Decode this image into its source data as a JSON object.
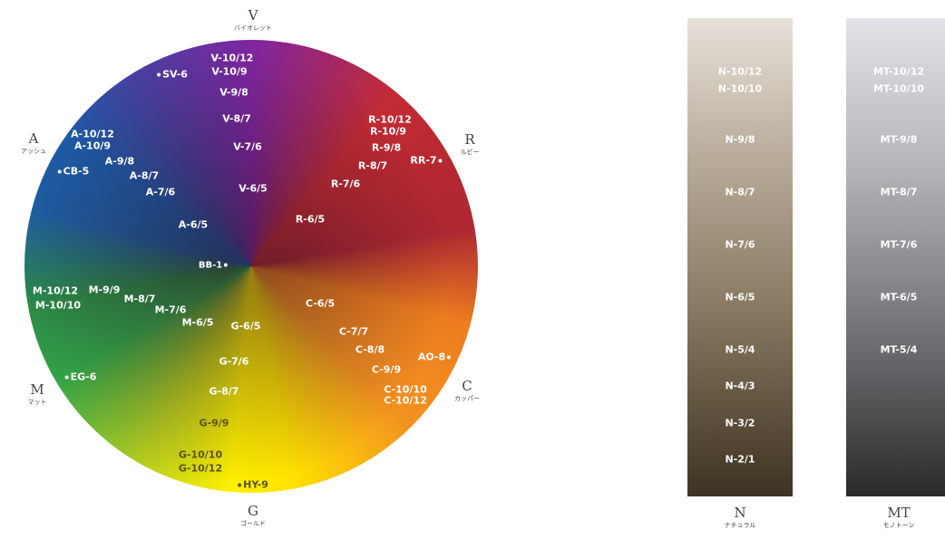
{
  "wheel": {
    "axes": {
      "v": {
        "letter": "V",
        "name": "バイオレット"
      },
      "r": {
        "letter": "R",
        "name": "ルビー"
      },
      "c": {
        "letter": "C",
        "name": "カッパー"
      },
      "g": {
        "letter": "G",
        "name": "ゴールド"
      },
      "m": {
        "letter": "M",
        "name": "マット"
      },
      "a": {
        "letter": "A",
        "name": "アッシュ"
      }
    },
    "labels": {
      "v_10_12": "V-10/12",
      "v_10_9": "V-10/9",
      "v_9_8": "V-9/8",
      "v_8_7": "V-8/7",
      "v_7_6": "V-7/6",
      "v_6_5": "V-6/5",
      "sv_6": "SV-6",
      "r_10_12": "R-10/12",
      "r_10_9": "R-10/9",
      "r_9_8": "R-9/8",
      "r_8_7": "R-8/7",
      "r_7_6": "R-7/6",
      "r_6_5": "R-6/5",
      "rr_7": "RR-7",
      "a_10_12": "A-10/12",
      "a_10_9": "A-10/9",
      "a_9_8": "A-9/8",
      "a_8_7": "A-8/7",
      "a_7_6": "A-7/6",
      "a_6_5": "A-6/5",
      "cb_5": "CB-5",
      "bb_1": "BB-1",
      "m_10_12": "M-10/12",
      "m_10_10": "M-10/10",
      "m_9_9": "M-9/9",
      "m_8_7": "M-8/7",
      "m_7_6": "M-7/6",
      "m_6_5": "M-6/5",
      "eg_6": "EG-6",
      "c_6_5": "C-6/5",
      "c_7_7": "C-7/7",
      "c_8_8": "C-8/8",
      "c_9_9": "C-9/9",
      "c_10_10": "C-10/10",
      "c_10_12": "C-10/12",
      "ao_8": "AO-8",
      "g_6_5": "G-6/5",
      "g_7_6": "G-7/6",
      "g_8_7": "G-8/7",
      "g_9_9": "G-9/9",
      "g_10_10": "G-10/10",
      "g_10_12": "G-10/12",
      "hy_9": "HY-9"
    }
  },
  "natural": {
    "letter": "N",
    "name": "ナチュラル",
    "labels": [
      "N-10/12",
      "N-10/10",
      "N-9/8",
      "N-8/7",
      "N-7/6",
      "N-6/5",
      "N-5/4",
      "N-4/3",
      "N-3/2",
      "N-2/1"
    ]
  },
  "monotone": {
    "letter": "MT",
    "name": "モノトーン",
    "labels": [
      "MT-10/12",
      "MT-10/10",
      "MT-9/8",
      "MT-8/7",
      "MT-7/6",
      "MT-6/5",
      "MT-5/4"
    ]
  },
  "colors": {
    "violet": "#7f25a0",
    "ruby": "#c22b33",
    "copper": "#f39121",
    "gold": "#fff000",
    "matte": "#32a84a",
    "ash": "#1d5cab"
  }
}
